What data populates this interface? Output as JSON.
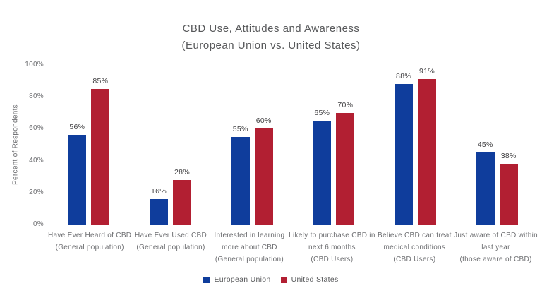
{
  "page": {
    "background": "#ffffff"
  },
  "chart_data": {
    "type": "bar",
    "title": "CBD Use, Attitudes and Awareness",
    "subtitle": "(European Union vs. United States)",
    "ylabel": "Percent of Respondents",
    "ylim": [
      0,
      100
    ],
    "yticks": [
      "0%",
      "20%",
      "40%",
      "60%",
      "80%",
      "100%"
    ],
    "grid": false,
    "legend_position": "bottom",
    "categories": [
      "Have Ever Heard of CBD\n(General population)",
      "Have Ever Used CBD\n(General population)",
      "Interested in learning\nmore about CBD\n(General population)",
      "Likely to purchase CBD in\nnext 6 months\n(CBD Users)",
      "Believe CBD can treat\nmedical conditions\n(CBD Users)",
      "Just aware of CBD within\nlast year\n(those aware of CBD)"
    ],
    "series": [
      {
        "name": "European Union",
        "color": "#0f3d9c",
        "values": [
          56,
          16,
          55,
          65,
          88,
          45
        ],
        "labels": [
          "56%",
          "16%",
          "55%",
          "65%",
          "88%",
          "45%"
        ]
      },
      {
        "name": "United States",
        "color": "#b21f32",
        "values": [
          85,
          28,
          60,
          70,
          91,
          38
        ],
        "labels": [
          "85%",
          "28%",
          "60%",
          "70%",
          "91%",
          "38%"
        ]
      }
    ]
  },
  "colors": {
    "title_text": "#58595b",
    "axis_text": "#6d6e71",
    "value_label_text": "#414042",
    "baseline": "#d9d9d9",
    "eu_blue": "#0f3d9c",
    "us_red": "#b21f32"
  }
}
